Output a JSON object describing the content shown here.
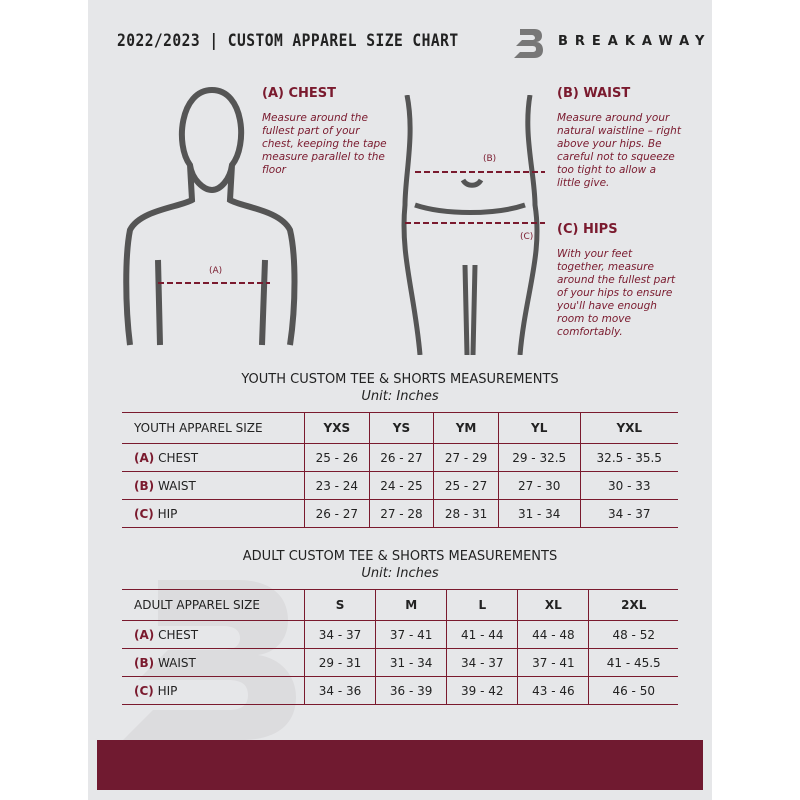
{
  "header": {
    "title": "2022/2023  |  CUSTOM APPAREL SIZE CHART",
    "brand": "BREAKAWAY"
  },
  "chest": {
    "heading": "(A) CHEST",
    "text": "Measure around the fullest part of your chest, keeping the tape measure parallel to the floor",
    "marker": "(A)"
  },
  "waist": {
    "heading": "(B) WAIST",
    "text": "Measure around your natural waistline – right above your hips. Be careful not to squeeze too tight to allow a little give.",
    "marker": "(B)"
  },
  "hips": {
    "heading": "(C) HIPS",
    "text": "With your feet together, measure around the fullest part of your hips to ensure you'll have enough room to move comfortably.",
    "marker": "(C)"
  },
  "youth": {
    "title": "YOUTH CUSTOM TEE & SHORTS MEASUREMENTS",
    "unit": "Unit: Inches",
    "header": [
      "YOUTH APPAREL SIZE",
      "YXS",
      "YS",
      "YM",
      "YL",
      "YXL"
    ],
    "rows": [
      {
        "letter": "(A)",
        "label": "CHEST",
        "values": [
          "25 - 26",
          "26 - 27",
          "27 - 29",
          "29 - 32.5",
          "32.5 - 35.5"
        ]
      },
      {
        "letter": "(B)",
        "label": "WAIST",
        "values": [
          "23 - 24",
          "24 - 25",
          "25 - 27",
          "27 - 30",
          "30 - 33"
        ]
      },
      {
        "letter": "(C)",
        "label": "HIP",
        "values": [
          "26 - 27",
          "27 - 28",
          "28 - 31",
          "31 - 34",
          "34 - 37"
        ]
      }
    ]
  },
  "adult": {
    "title": "ADULT CUSTOM TEE & SHORTS MEASUREMENTS",
    "unit": "Unit: Inches",
    "header": [
      "ADULT APPAREL SIZE",
      "S",
      "M",
      "L",
      "XL",
      "2XL"
    ],
    "rows": [
      {
        "letter": "(A)",
        "label": "CHEST",
        "values": [
          "34 - 37",
          "37 - 41",
          "41 - 44",
          "44 - 48",
          "48 - 52"
        ]
      },
      {
        "letter": "(B)",
        "label": "WAIST",
        "values": [
          "29 - 31",
          "31 - 34",
          "34 - 37",
          "37 - 41",
          "41 - 45.5"
        ]
      },
      {
        "letter": "(C)",
        "label": "HIP",
        "values": [
          "34 - 36",
          "36 - 39",
          "39 - 42",
          "43 - 46",
          "46 - 50"
        ]
      }
    ]
  },
  "colors": {
    "accent": "#701a30",
    "background": "#e6e7e9"
  }
}
